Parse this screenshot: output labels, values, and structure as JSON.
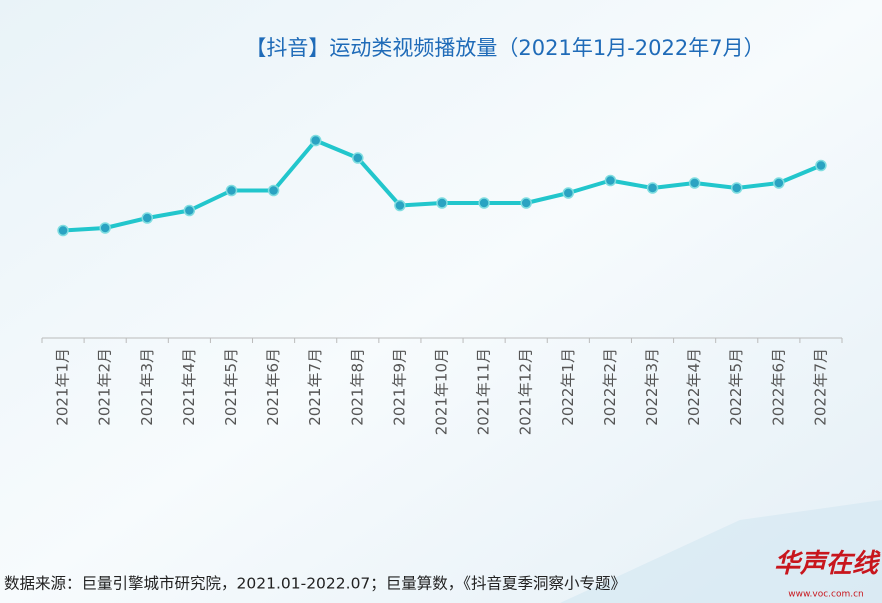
{
  "chart_data": {
    "type": "line",
    "title": "【抖音】运动类视频播放量（2021年1月-2022年7月）",
    "categories": [
      "2021年1月",
      "2021年2月",
      "2021年3月",
      "2021年4月",
      "2021年5月",
      "2021年6月",
      "2021年7月",
      "2021年8月",
      "2021年9月",
      "2021年10月",
      "2021年11月",
      "2021年12月",
      "2022年1月",
      "2022年2月",
      "2022年3月",
      "2022年4月",
      "2022年5月",
      "2022年6月",
      "2022年7月"
    ],
    "values": [
      43,
      44,
      48,
      51,
      59,
      59,
      79,
      72,
      53,
      54,
      54,
      54,
      58,
      63,
      60,
      62,
      60,
      62,
      69
    ],
    "color": "#22c6cc",
    "ylim": [
      0,
      100
    ]
  },
  "source": "数据来源：巨量引擎城市研究院，2021.01-2022.07；巨量算数，《抖音夏季洞察小专题》",
  "watermark": {
    "logo": "华声在线",
    "url": "www.voc.com.cn"
  }
}
